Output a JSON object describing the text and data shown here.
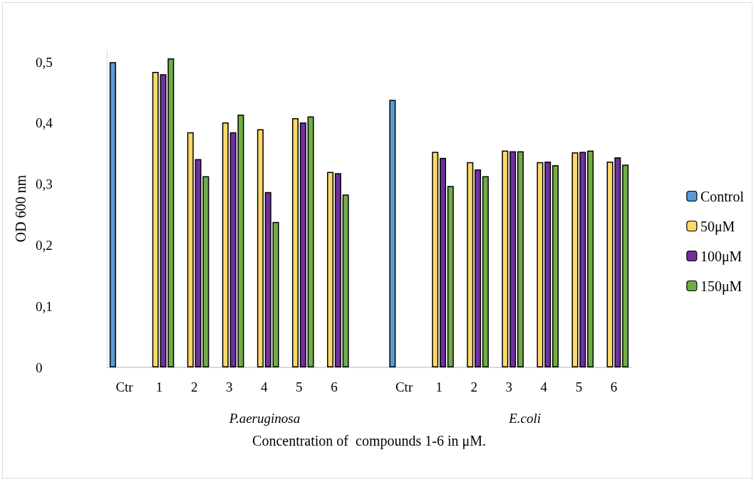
{
  "chart_data": {
    "type": "bar",
    "xlabel": "Concentration of  compounds 1-6 in μM.",
    "ylabel": "OD 600 nm",
    "categories": [
      "Ctr",
      "1",
      "2",
      "3",
      "4",
      "5",
      "6",
      null,
      "Ctr",
      "1",
      "2",
      "3",
      "4",
      "5",
      "6"
    ],
    "series": [
      {
        "name": "Control",
        "color": "#5b9bd5",
        "values": [
          0.5,
          null,
          null,
          null,
          null,
          null,
          null,
          null,
          0.438,
          null,
          null,
          null,
          null,
          null,
          null
        ]
      },
      {
        "name": "50μM",
        "color": "#ffd966",
        "values": [
          null,
          0.484,
          0.385,
          0.401,
          0.39,
          0.408,
          0.32,
          null,
          null,
          0.353,
          0.336,
          0.355,
          0.336,
          0.352,
          0.337
        ]
      },
      {
        "name": "100μM",
        "color": "#7030a0",
        "values": [
          null,
          0.48,
          0.341,
          0.385,
          0.287,
          0.401,
          0.318,
          null,
          null,
          0.343,
          0.324,
          0.354,
          0.337,
          0.353,
          0.344
        ]
      },
      {
        "name": "150μM",
        "color": "#70ad47",
        "values": [
          null,
          0.506,
          0.313,
          0.414,
          0.238,
          0.411,
          0.283,
          null,
          null,
          0.297,
          0.313,
          0.354,
          0.331,
          0.355,
          0.332
        ]
      }
    ],
    "yticks": [
      0,
      {
        "value": 0.1,
        "label": "0,1"
      },
      {
        "value": 0.2,
        "label": "0,2"
      },
      {
        "value": 0.3,
        "label": "0,3"
      },
      {
        "value": 0.4,
        "label": "0,4"
      },
      {
        "value": 0.5,
        "label": "0,5"
      }
    ],
    "ylim": [
      0,
      0.52
    ],
    "annotations": [
      "P.aeruginosa",
      "E.coli"
    ],
    "grid": false,
    "legend": "right"
  }
}
